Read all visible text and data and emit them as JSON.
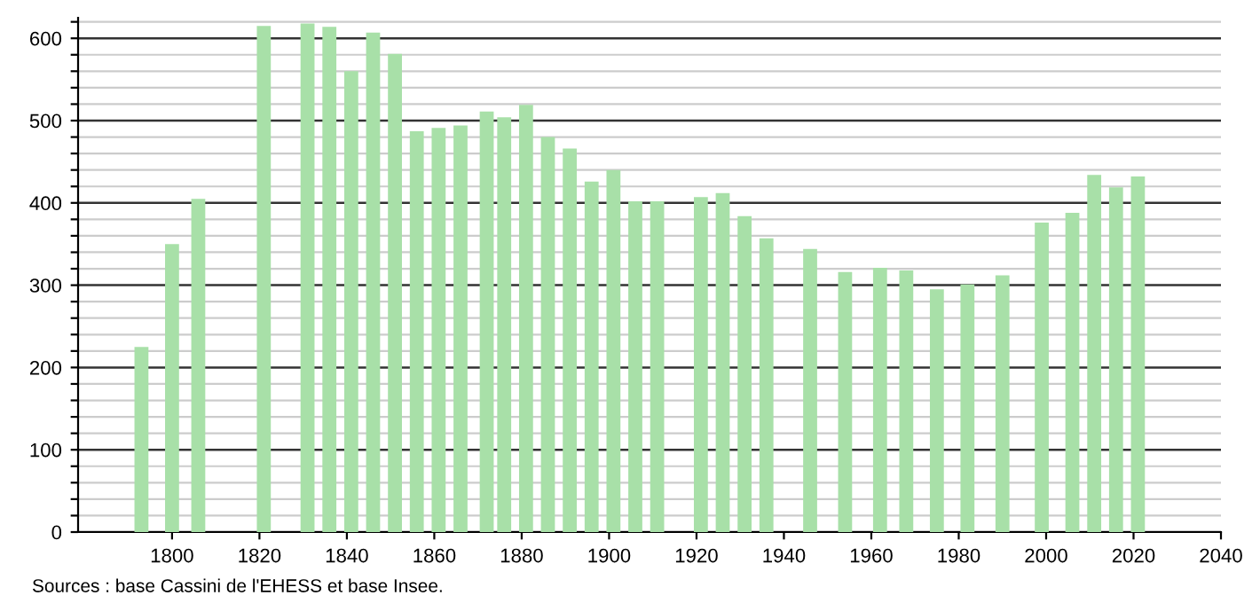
{
  "chart_data": {
    "type": "bar",
    "annotations": [
      "Sources : base Cassini de l'EHESS et base Insee."
    ],
    "x": [
      1793,
      1800,
      1806,
      1821,
      1831,
      1836,
      1841,
      1846,
      1851,
      1856,
      1861,
      1866,
      1872,
      1876,
      1881,
      1886,
      1891,
      1896,
      1901,
      1906,
      1911,
      1921,
      1926,
      1931,
      1936,
      1946,
      1954,
      1962,
      1968,
      1975,
      1982,
      1990,
      1999,
      2006,
      2011,
      2016,
      2021
    ],
    "values": [
      225,
      350,
      405,
      615,
      618,
      614,
      560,
      607,
      581,
      487,
      491,
      494,
      511,
      504,
      519,
      480,
      466,
      426,
      440,
      402,
      402,
      407,
      412,
      384,
      357,
      344,
      316,
      321,
      318,
      295,
      301,
      312,
      376,
      388,
      434,
      419,
      432
    ],
    "color": "#a8e0a8",
    "xlim": [
      1778.5,
      2040
    ],
    "xticks": [
      1800,
      1820,
      1840,
      1860,
      1880,
      1900,
      1920,
      1940,
      1960,
      1980,
      2000,
      2020,
      2040
    ],
    "ylim": [
      0,
      625
    ],
    "yticks": [
      0,
      {
        "value": 20,
        "label": null
      },
      {
        "value": 40,
        "label": null
      },
      {
        "value": 60,
        "label": null
      },
      {
        "value": 80,
        "label": null
      },
      100,
      {
        "value": 120,
        "label": null
      },
      {
        "value": 140,
        "label": null
      },
      {
        "value": 160,
        "label": null
      },
      {
        "value": 180,
        "label": null
      },
      200,
      {
        "value": 220,
        "label": null
      },
      {
        "value": 240,
        "label": null
      },
      {
        "value": 260,
        "label": null
      },
      {
        "value": 280,
        "label": null
      },
      300,
      {
        "value": 320,
        "label": null
      },
      {
        "value": 340,
        "label": null
      },
      {
        "value": 360,
        "label": null
      },
      {
        "value": 380,
        "label": null
      },
      400,
      {
        "value": 420,
        "label": null
      },
      {
        "value": 440,
        "label": null
      },
      {
        "value": 460,
        "label": null
      },
      {
        "value": 480,
        "label": null
      },
      500,
      {
        "value": 520,
        "label": null
      },
      {
        "value": 540,
        "label": null
      },
      {
        "value": 560,
        "label": null
      },
      {
        "value": 580,
        "label": null
      },
      600,
      {
        "value": 620,
        "label": null
      }
    ],
    "grid": "y"
  }
}
